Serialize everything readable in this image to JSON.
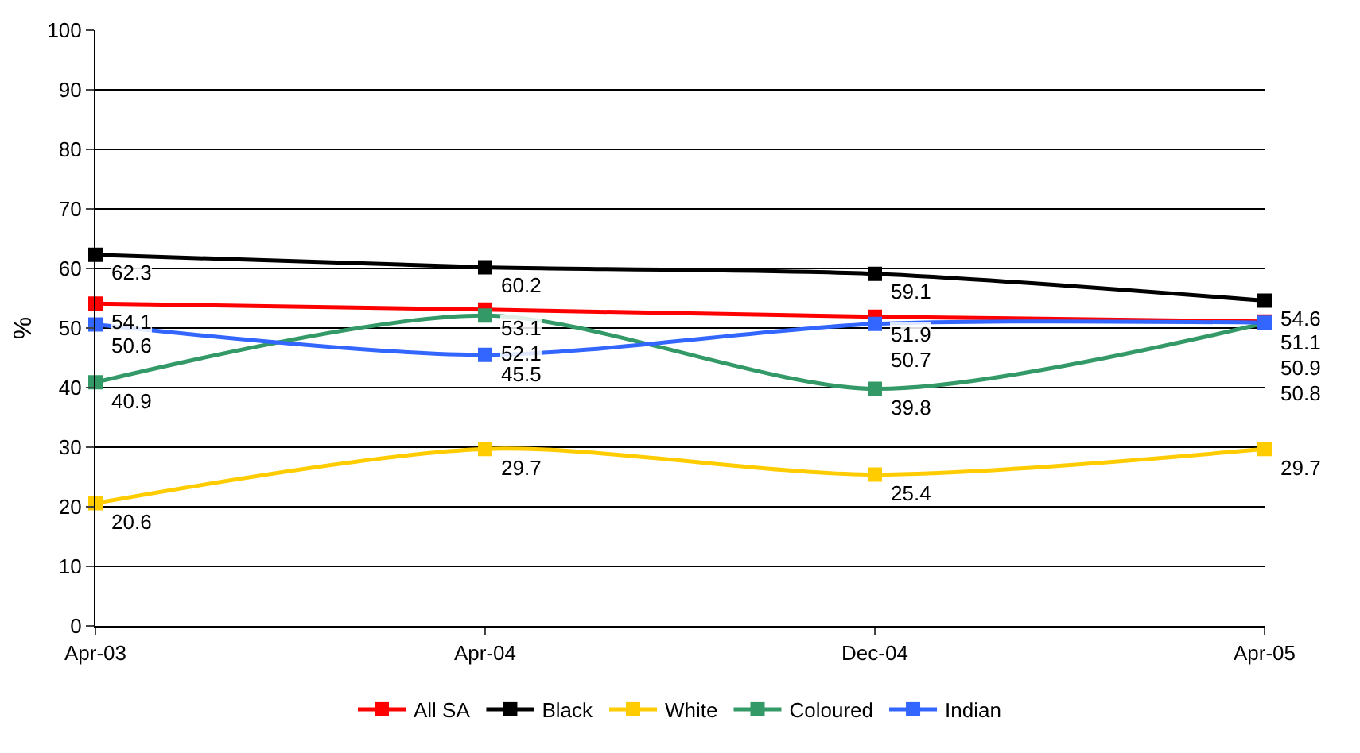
{
  "chart_data": {
    "type": "line",
    "ylabel": "%",
    "categories": [
      "Apr-03",
      "Apr-04",
      "Dec-04",
      "Apr-05"
    ],
    "series": [
      {
        "name": "All SA",
        "color": "#ff0000",
        "values": [
          54.1,
          53.1,
          51.9,
          51.1
        ]
      },
      {
        "name": "Black",
        "color": "#000000",
        "values": [
          62.3,
          60.2,
          59.1,
          54.6
        ]
      },
      {
        "name": "White",
        "color": "#ffcc00",
        "values": [
          20.6,
          29.7,
          25.4,
          29.7
        ]
      },
      {
        "name": "Coloured",
        "color": "#339966",
        "values": [
          40.9,
          52.1,
          39.8,
          50.8
        ]
      },
      {
        "name": "Indian",
        "color": "#3366ff",
        "values": [
          50.6,
          45.5,
          50.7,
          50.9
        ]
      }
    ],
    "ylim": [
      0,
      100
    ],
    "yticks": [
      0,
      10,
      20,
      30,
      40,
      50,
      60,
      70,
      80,
      90,
      100
    ],
    "grid": "y",
    "legend": "bottom",
    "marker": "square",
    "line_style": "solid",
    "data_labels": true
  }
}
